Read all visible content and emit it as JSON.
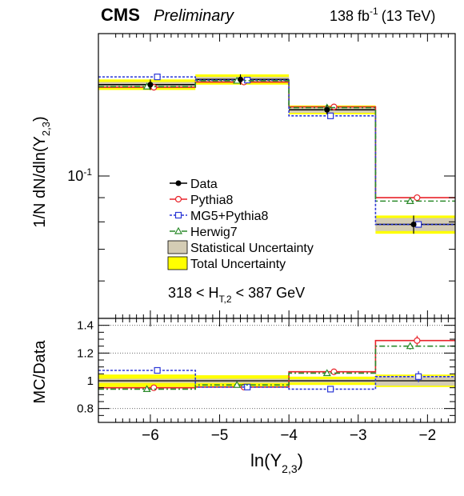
{
  "header": {
    "experiment": "CMS",
    "status": "Preliminary",
    "lumi_value": "138 fb",
    "lumi_exp": "-1",
    "energy": "(13 TeV)"
  },
  "annotation": {
    "cut_prefix": "318 < H",
    "cut_sub": "T,2",
    "cut_suffix": " < 387 GeV"
  },
  "colors": {
    "data": "#000000",
    "pythia8": "#e8232a",
    "mg5": "#2b37d6",
    "herwig7": "#2a8a2a",
    "stat_band": "#d4ccb4",
    "total_band": "#ffff00"
  },
  "chart_data": [
    {
      "type": "line",
      "panel": "main",
      "ylabel_main": "1/N dN/dln(Y",
      "ylabel_sub": "2,3",
      "ylabel_close": ")",
      "yscale": "log",
      "ylim": [
        0.05,
        0.2
      ],
      "xlim": [
        -6.75,
        -1.6
      ],
      "yticks": [
        {
          "value": 0.1,
          "label": "10",
          "exp": "-1"
        }
      ],
      "bin_edges": [
        -6.75,
        -5.35,
        -4.0,
        -2.75,
        -1.6
      ],
      "legend_position": "center",
      "series": [
        {
          "name": "Data",
          "key": "data",
          "style": "points",
          "marker": "filled-circle",
          "values": [
            0.156,
            0.16,
            0.138,
            0.079
          ],
          "x": [
            -6.0,
            -4.7,
            -3.45,
            -2.2
          ],
          "stat_err": [
            0.002,
            0.002,
            0.002,
            0.0025
          ],
          "total_err": [
            0.004,
            0.004,
            0.003,
            0.0035
          ]
        },
        {
          "name": "Pythia8",
          "key": "pythia8",
          "style": "step-solid",
          "marker": "open-circle",
          "values": [
            0.154,
            0.158,
            0.14,
            0.09
          ],
          "x": [
            -5.95,
            -4.65,
            -3.35,
            -2.15
          ]
        },
        {
          "name": "MG5+Pythia8",
          "key": "mg5",
          "style": "step-dotted",
          "marker": "open-square",
          "values": [
            0.162,
            0.1595,
            0.134,
            0.079
          ],
          "x": [
            -5.9,
            -4.6,
            -3.4,
            -2.13
          ]
        },
        {
          "name": "Herwig7",
          "key": "herwig7",
          "style": "step-dashdot",
          "marker": "open-triangle",
          "values": [
            0.1545,
            0.159,
            0.1395,
            0.0885
          ],
          "x": [
            -6.05,
            -4.75,
            -3.45,
            -2.25
          ]
        },
        {
          "name": "Statistical Uncertainty",
          "key": "stat_band",
          "style": "band"
        },
        {
          "name": "Total Uncertainty",
          "key": "total_band",
          "style": "band"
        }
      ]
    },
    {
      "type": "line",
      "panel": "ratio",
      "ylabel": "MC/Data",
      "xlabel_main": "ln(Y",
      "xlabel_sub": "2,3",
      "xlabel_close": ")",
      "ylim": [
        0.7,
        1.45
      ],
      "xlim": [
        -6.75,
        -1.6
      ],
      "yticks": [
        {
          "value": 0.8,
          "label": "0.8"
        },
        {
          "value": 1.0,
          "label": "1"
        },
        {
          "value": 1.2,
          "label": "1.2"
        },
        {
          "value": 1.4,
          "label": "1.4"
        }
      ],
      "xticks": [
        {
          "value": -6,
          "label": "−6"
        },
        {
          "value": -5,
          "label": "−5"
        },
        {
          "value": -4,
          "label": "−4"
        },
        {
          "value": -3,
          "label": "−3"
        },
        {
          "value": -2,
          "label": "−2"
        }
      ],
      "grid": "dotted at 0.8, 1, 1.2, 1.4",
      "stat_band": [
        0.015,
        0.015,
        0.012,
        0.035
      ],
      "total_band": [
        0.045,
        0.04,
        0.03,
        0.045
      ],
      "series": [
        {
          "name": "Pythia8",
          "key": "pythia8",
          "values": [
            0.95,
            0.955,
            1.065,
            1.29
          ],
          "x": [
            -5.95,
            -4.65,
            -3.35,
            -2.15
          ],
          "err": [
            0.02,
            0.01,
            0.01,
            0.035
          ]
        },
        {
          "name": "MG5+Pythia8",
          "key": "mg5",
          "values": [
            1.075,
            0.955,
            0.94,
            1.03
          ],
          "x": [
            -5.9,
            -4.6,
            -3.4,
            -2.13
          ],
          "err": [
            0.01,
            0.01,
            0.01,
            0.04
          ]
        },
        {
          "name": "Herwig7",
          "key": "herwig7",
          "values": [
            0.94,
            0.97,
            1.055,
            1.25
          ],
          "x": [
            -6.05,
            -4.75,
            -3.45,
            -2.25
          ],
          "err": [
            0.015,
            0.01,
            0.01,
            0.025
          ]
        }
      ]
    }
  ]
}
